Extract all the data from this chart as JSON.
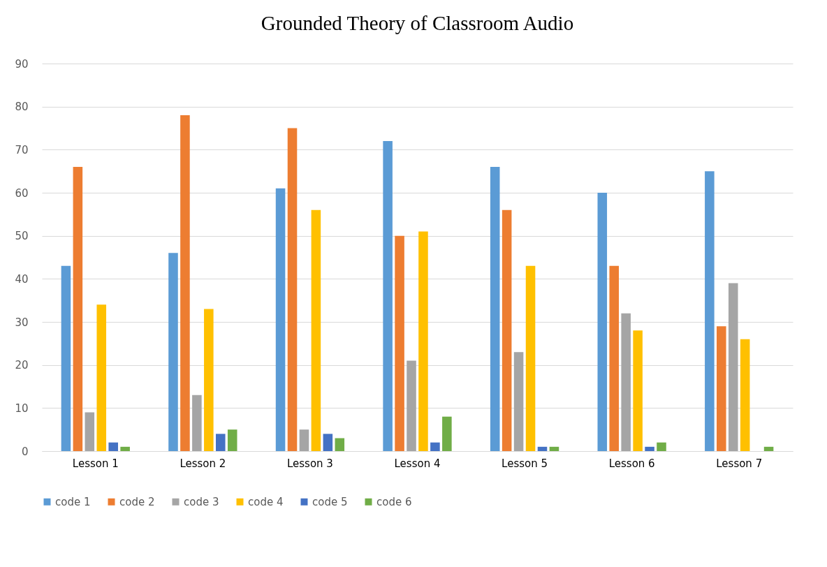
{
  "chart_data": {
    "type": "bar",
    "title": "Grounded Theory of Classroom Audio",
    "categories": [
      "Lesson 1",
      "Lesson 2",
      "Lesson 3",
      "Lesson 4",
      "Lesson 5",
      "Lesson 6",
      "Lesson 7"
    ],
    "series": [
      {
        "name": "code 1",
        "color": "#5b9bd5",
        "values": [
          43,
          46,
          61,
          72,
          66,
          60,
          65
        ]
      },
      {
        "name": "code 2",
        "color": "#ed7d31",
        "values": [
          66,
          78,
          75,
          50,
          56,
          43,
          29
        ]
      },
      {
        "name": "code 3",
        "color": "#a5a5a5",
        "values": [
          9,
          13,
          5,
          21,
          23,
          32,
          39
        ]
      },
      {
        "name": "code 4",
        "color": "#ffc000",
        "values": [
          34,
          33,
          56,
          51,
          43,
          28,
          26
        ]
      },
      {
        "name": "code 5",
        "color": "#4472c4",
        "values": [
          2,
          4,
          4,
          2,
          1,
          1,
          0
        ]
      },
      {
        "name": "code 6",
        "color": "#70ad47",
        "values": [
          1,
          5,
          3,
          8,
          1,
          2,
          1
        ]
      }
    ],
    "ylim": [
      0,
      90
    ],
    "yticks": [
      0,
      10,
      20,
      30,
      40,
      50,
      60,
      70,
      80,
      90
    ],
    "grid": "y",
    "legend": "bottom"
  }
}
